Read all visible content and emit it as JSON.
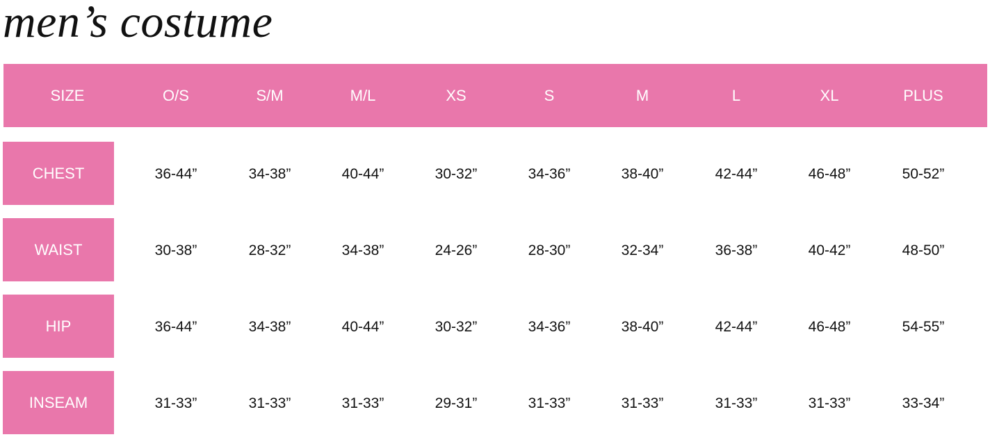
{
  "title": "men’s costume",
  "accent_color": "#e977ab",
  "table": {
    "header_label": "SIZE",
    "columns": [
      "O/S",
      "S/M",
      "M/L",
      "XS",
      "S",
      "M",
      "L",
      "XL",
      "PLUS"
    ],
    "rows": [
      {
        "label": "CHEST",
        "values": [
          "36-44”",
          "34-38”",
          "40-44”",
          "30-32”",
          "34-36”",
          "38-40”",
          "42-44”",
          "46-48”",
          "50-52”"
        ]
      },
      {
        "label": "WAIST",
        "values": [
          "30-38”",
          "28-32”",
          "34-38”",
          "24-26”",
          "28-30”",
          "32-34”",
          "36-38”",
          "40-42”",
          "48-50”"
        ]
      },
      {
        "label": "HIP",
        "values": [
          "36-44”",
          "34-38”",
          "40-44”",
          "30-32”",
          "34-36”",
          "38-40”",
          "42-44”",
          "46-48”",
          "54-55”"
        ]
      },
      {
        "label": "INSEAM",
        "values": [
          "31-33”",
          "31-33”",
          "31-33”",
          "29-31”",
          "31-33”",
          "31-33”",
          "31-33”",
          "31-33”",
          "33-34”"
        ]
      }
    ]
  }
}
